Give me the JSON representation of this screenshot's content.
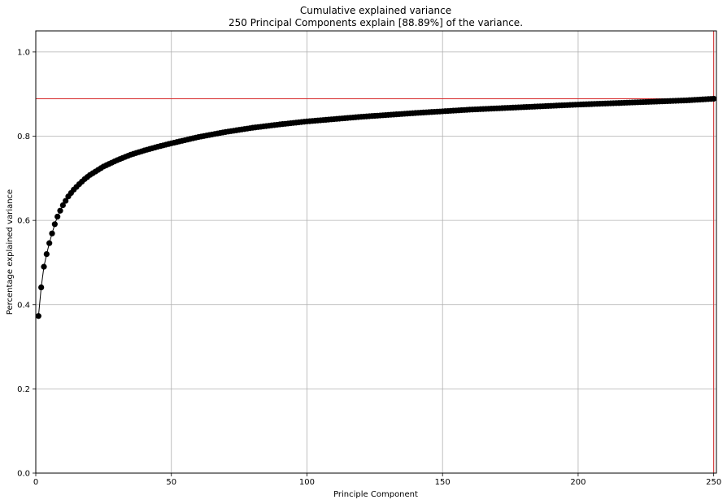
{
  "chart_data": {
    "type": "line",
    "title": "Cumulative explained variance",
    "subtitle": "250 Principal Components explain [88.89%] of the variance.",
    "xlabel": "Principle Component",
    "ylabel": "Percentage explained variance",
    "xlim": [
      0,
      251
    ],
    "ylim": [
      0,
      1.05
    ],
    "x_ticks": [
      0,
      50,
      100,
      150,
      200,
      250
    ],
    "x_tick_labels": [
      "0",
      "50",
      "100",
      "150",
      "200",
      "250"
    ],
    "y_ticks": [
      0.0,
      0.2,
      0.4,
      0.6,
      0.8,
      1.0
    ],
    "y_tick_labels": [
      "0.0",
      "0.2",
      "0.4",
      "0.6",
      "0.8",
      "1.0"
    ],
    "grid": true,
    "n_components": 250,
    "threshold_y": 0.8889,
    "threshold_x": 250,
    "series": [
      {
        "color": "#000000",
        "marker": "circle",
        "x": [
          1,
          2,
          3,
          4,
          5,
          6,
          7,
          8,
          9,
          10,
          12,
          14,
          16,
          18,
          20,
          25,
          30,
          35,
          40,
          45,
          50,
          60,
          70,
          80,
          90,
          100,
          120,
          140,
          160,
          180,
          200,
          220,
          240,
          250
        ],
        "y": [
          0.373,
          0.441,
          0.49,
          0.52,
          0.546,
          0.569,
          0.591,
          0.609,
          0.623,
          0.636,
          0.657,
          0.673,
          0.686,
          0.698,
          0.708,
          0.728,
          0.743,
          0.756,
          0.766,
          0.775,
          0.783,
          0.798,
          0.81,
          0.82,
          0.828,
          0.835,
          0.846,
          0.855,
          0.863,
          0.869,
          0.875,
          0.88,
          0.885,
          0.8889
        ]
      }
    ],
    "colors": {
      "threshold": "#d62728",
      "grid": "#b0b0b0",
      "series": "#000000"
    }
  }
}
